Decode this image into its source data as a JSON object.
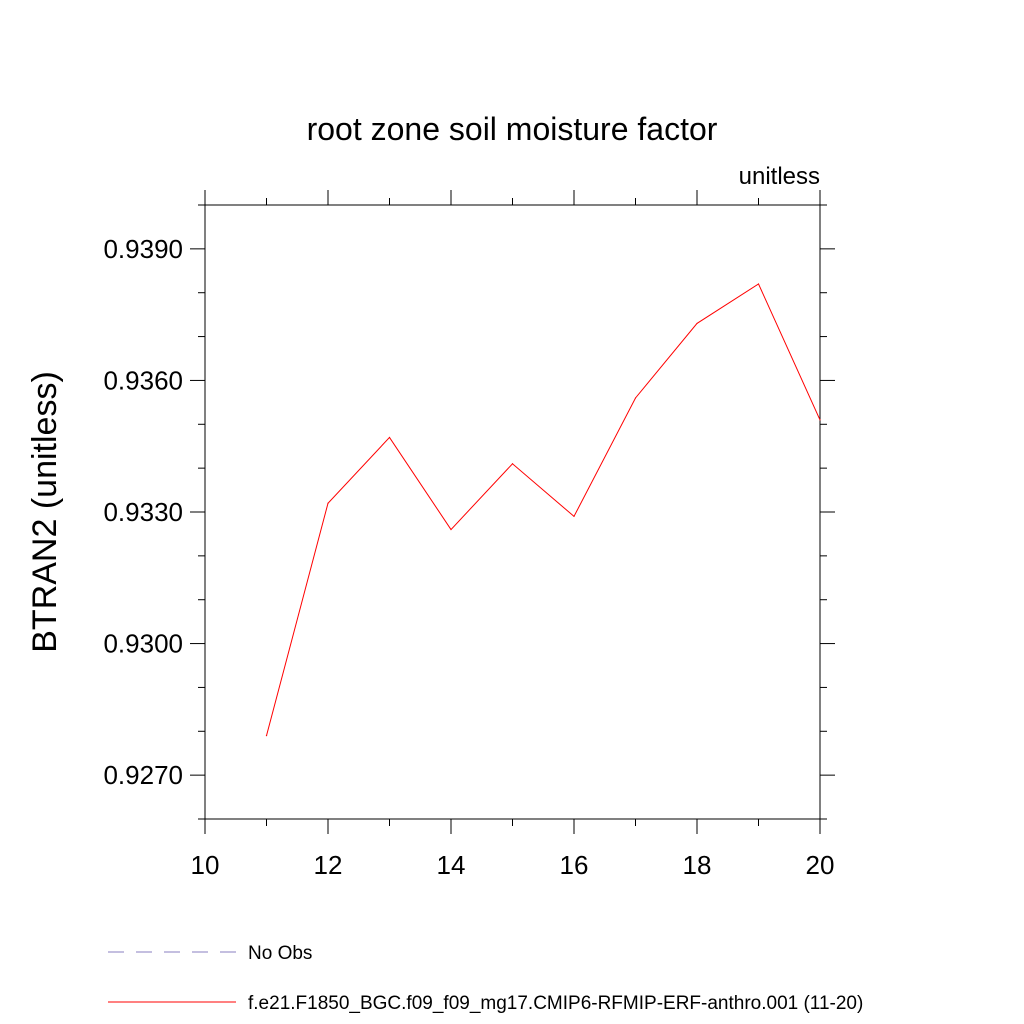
{
  "chart_data": {
    "type": "line",
    "title": "root zone soil moisture factor",
    "units_label": "unitless",
    "ylabel": "BTRAN2  (unitless)",
    "xlabel": "",
    "xlim": [
      10,
      20
    ],
    "ylim": [
      0.926,
      0.94
    ],
    "x_ticks": [
      10,
      12,
      14,
      16,
      18,
      20
    ],
    "x_tick_labels": [
      "10",
      "12",
      "14",
      "16",
      "18",
      "20"
    ],
    "y_ticks": [
      0.927,
      0.93,
      0.933,
      0.936,
      0.939
    ],
    "y_tick_labels": [
      "0.9270",
      "0.9300",
      "0.9330",
      "0.9360",
      "0.9390"
    ],
    "x_minor_step": 1,
    "y_minor_step": 0.001,
    "grid": false,
    "series": [
      {
        "name": "f.e21.F1850_BGC.f09_f09_mg17.CMIP6-RFMIP-ERF-anthro.001 (11-20)",
        "color": "#ff0000",
        "style": "solid",
        "x": [
          11,
          12,
          13,
          14,
          15,
          16,
          17,
          18,
          19,
          20
        ],
        "values": [
          0.9279,
          0.9332,
          0.9347,
          0.9326,
          0.9341,
          0.9329,
          0.9356,
          0.9373,
          0.9382,
          0.9351
        ]
      }
    ],
    "legend": {
      "placement": "bottom",
      "entries": [
        {
          "label": "No Obs",
          "color": "#8a7fc0",
          "style": "dashed"
        },
        {
          "label": "f.e21.F1850_BGC.f09_f09_mg17.CMIP6-RFMIP-ERF-anthro.001 (11-20)",
          "color": "#ff0000",
          "style": "solid"
        }
      ]
    }
  }
}
